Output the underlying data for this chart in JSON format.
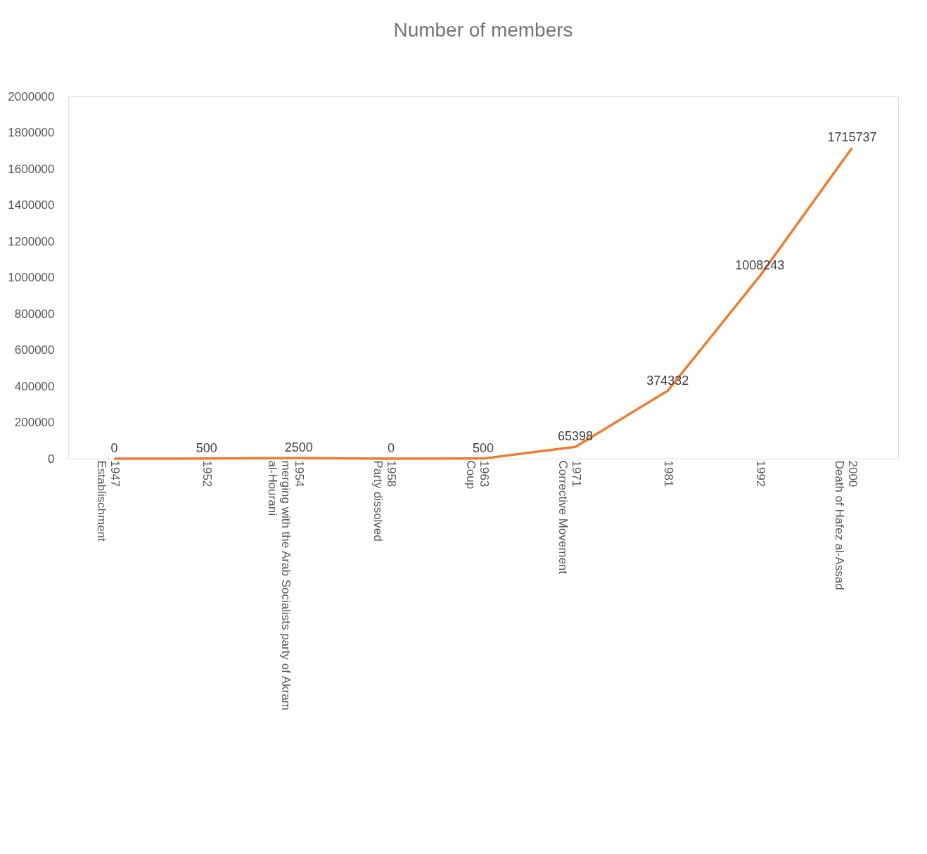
{
  "chart_data": {
    "type": "line",
    "title": "Number of members",
    "categories": [
      "1947\nEstablischment",
      "1952",
      "1954\nmerging with the Arab Socialists party of Akram\nal-Hourani",
      "1958\nParty dissolved",
      "1963\nCoup",
      "1971\nCorrective Movement",
      "1981",
      "1992",
      "2000\nDeath of Hafez al-Assad"
    ],
    "series": [
      {
        "color": "#ed7d31",
        "values": [
          0,
          500,
          2500,
          0,
          500,
          65398,
          374332,
          1008243,
          1715737
        ]
      }
    ],
    "ylim": [
      0,
      2000000
    ],
    "yticks": [
      0,
      200000,
      400000,
      600000,
      800000,
      1000000,
      1200000,
      1400000,
      1600000,
      1800000,
      2000000
    ],
    "data_labels": true,
    "grid": false,
    "marker": "none",
    "line_style": "solid"
  }
}
